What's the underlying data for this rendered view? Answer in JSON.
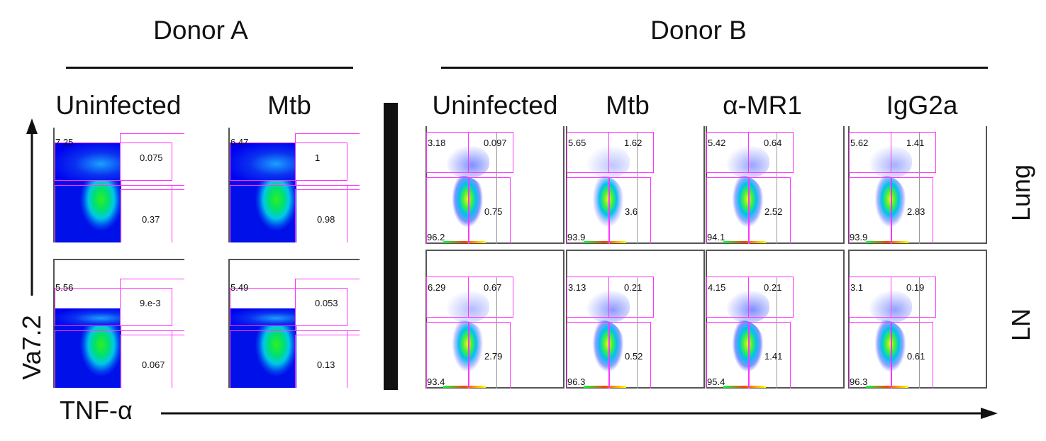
{
  "figure": {
    "donor_a": {
      "title": "Donor A",
      "columns": [
        "Uninfected",
        "Mtb"
      ]
    },
    "donor_b": {
      "title": "Donor B",
      "columns": [
        "Uninfected",
        "Mtb",
        "α-MR1",
        "IgG2a"
      ]
    },
    "row_labels": [
      "Lung",
      "LN"
    ],
    "y_axis_label": "Va7.2",
    "x_axis_label": "TNF-α",
    "gate_color": "#ff33ff",
    "density_colors": [
      "#0000ff",
      "#00e0ff",
      "#00ff40",
      "#ffff00",
      "#ff2000"
    ]
  },
  "donor_a_plots": [
    {
      "column": "Uninfected",
      "row": 1,
      "upper_left": "7.25",
      "upper_right": "0.075",
      "lower_right": "0.37"
    },
    {
      "column": "Mtb",
      "row": 1,
      "upper_left": "6.47",
      "upper_right": "1",
      "lower_right": "0.98"
    },
    {
      "column": "Uninfected",
      "row": 2,
      "upper_left": "5.56",
      "upper_right": "9.e-3",
      "lower_right": "0.067"
    },
    {
      "column": "Mtb",
      "row": 2,
      "upper_left": "5.49",
      "upper_right": "0.053",
      "lower_right": "0.13"
    }
  ],
  "donor_b_plots": [
    {
      "column": "Uninfected",
      "row": "Lung",
      "upper_left": "3.18",
      "upper_right": "0.097",
      "lower_right": "0.75",
      "lower_left": "96.2"
    },
    {
      "column": "Mtb",
      "row": "Lung",
      "upper_left": "5.65",
      "upper_right": "1.62",
      "lower_right": "3.6",
      "lower_left": "93.9"
    },
    {
      "column": "α-MR1",
      "row": "Lung",
      "upper_left": "5.42",
      "upper_right": "0.64",
      "lower_right": "2.52",
      "lower_left": "94.1"
    },
    {
      "column": "IgG2a",
      "row": "Lung",
      "upper_left": "5.62",
      "upper_right": "1.41",
      "lower_right": "2.83",
      "lower_left": "93.9"
    },
    {
      "column": "Uninfected",
      "row": "LN",
      "upper_left": "6.29",
      "upper_right": "0.67",
      "lower_right": "2.79",
      "lower_left": "93.4"
    },
    {
      "column": "Mtb",
      "row": "LN",
      "upper_left": "3.13",
      "upper_right": "0.21",
      "lower_right": "0.52",
      "lower_left": "96.3"
    },
    {
      "column": "α-MR1",
      "row": "LN",
      "upper_left": "4.15",
      "upper_right": "0.21",
      "lower_right": "1.41",
      "lower_left": "95.4"
    },
    {
      "column": "IgG2a",
      "row": "LN",
      "upper_left": "3.1",
      "upper_right": "0.19",
      "lower_right": "0.61",
      "lower_left": "96.3"
    }
  ]
}
